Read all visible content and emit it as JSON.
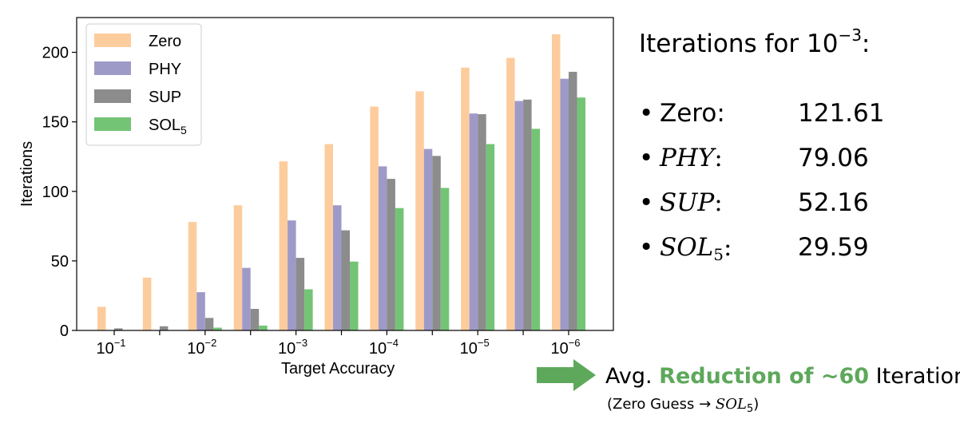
{
  "chart_data": {
    "type": "bar",
    "xlabel": "Target Accuracy",
    "ylabel": "Iterations",
    "ylim": [
      0,
      225
    ],
    "yticks": [
      0,
      50,
      100,
      150,
      200
    ],
    "grid": false,
    "legend_position": "top-left",
    "groups": [
      {
        "label_base": "10",
        "label_exp": "−1"
      },
      {
        "label_base": "",
        "label_exp": ""
      },
      {
        "label_base": "10",
        "label_exp": "−2"
      },
      {
        "label_base": "",
        "label_exp": ""
      },
      {
        "label_base": "10",
        "label_exp": "−3"
      },
      {
        "label_base": "",
        "label_exp": ""
      },
      {
        "label_base": "10",
        "label_exp": "−4"
      },
      {
        "label_base": "",
        "label_exp": ""
      },
      {
        "label_base": "10",
        "label_exp": "−5"
      },
      {
        "label_base": "",
        "label_exp": ""
      },
      {
        "label_base": "10",
        "label_exp": "−6"
      }
    ],
    "series": [
      {
        "name": "Zero",
        "name_sub": "",
        "color": "#fdcc9d",
        "values": [
          17,
          38,
          78,
          90,
          121.6,
          134,
          161,
          172,
          189,
          196,
          213
        ]
      },
      {
        "name": "PHY",
        "name_sub": "",
        "color": "#9e9ac8",
        "values": [
          0,
          0,
          27.5,
          45,
          79.1,
          90,
          118,
          130.5,
          156,
          165,
          181
        ]
      },
      {
        "name": "SUP",
        "name_sub": "",
        "color": "#8c8c8c",
        "values": [
          1.5,
          3,
          9,
          15.5,
          52.2,
          72,
          109,
          125.5,
          155.5,
          166,
          186
        ]
      },
      {
        "name": "SOL",
        "name_sub": "5",
        "color": "#74c476",
        "values": [
          0,
          0,
          2,
          3.5,
          29.6,
          49.5,
          88,
          102.5,
          134,
          145,
          167.5
        ]
      }
    ]
  },
  "panel": {
    "title_prefix": "Iterations for ",
    "title_base": "10",
    "title_exp": "−3",
    "title_suffix": ":",
    "bullet": "•",
    "rows": [
      {
        "name": "Zero:",
        "value": "121.61"
      },
      {
        "name": "PHY",
        "value": "79.06"
      },
      {
        "name": "SUP",
        "value": "52.16"
      },
      {
        "name": "SOL",
        "name_sub": "5",
        "value": "29.59"
      }
    ]
  },
  "callout": {
    "prefix": "Avg. ",
    "highlight": "Reduction of ~60",
    "suffix": " Iterations",
    "highlight_color": "#5ea85b",
    "note_prefix": "(Zero Guess → ",
    "note_math": "SOL",
    "note_sub": "5",
    "note_suffix": ")"
  }
}
